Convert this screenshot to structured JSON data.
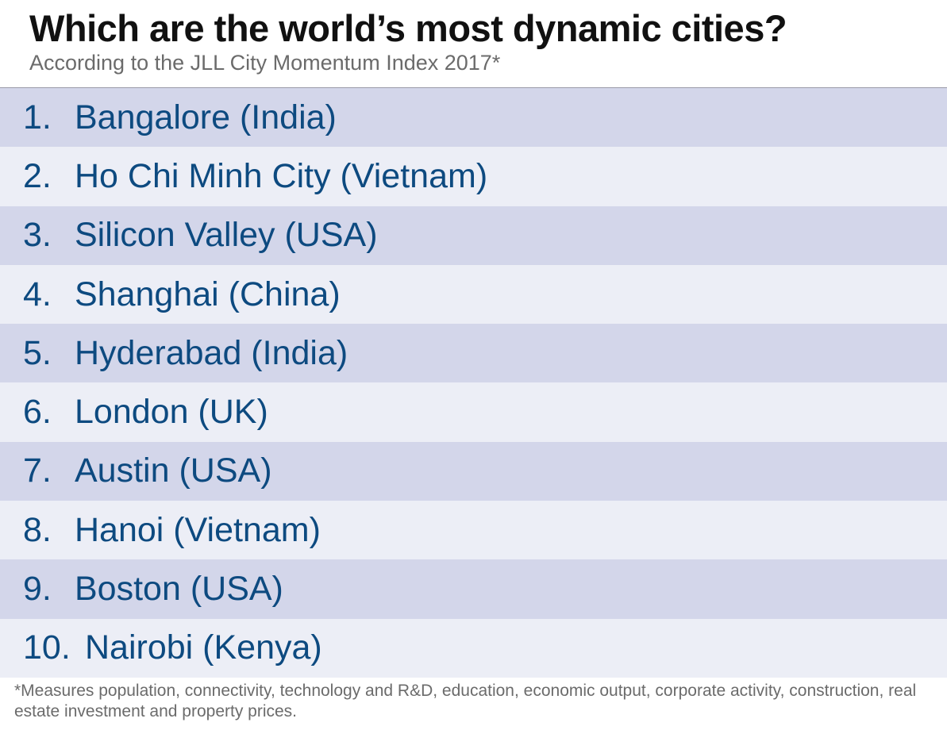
{
  "header": {
    "title": "Which are the world’s most dynamic cities?",
    "subtitle": "According to the JLL City Momentum Index 2017*"
  },
  "rankings": [
    {
      "rank": "1.",
      "city": "Bangalore (India)"
    },
    {
      "rank": "2.",
      "city": "Ho Chi Minh City (Vietnam)"
    },
    {
      "rank": "3.",
      "city": "Silicon Valley (USA)"
    },
    {
      "rank": "4.",
      "city": "Shanghai (China)"
    },
    {
      "rank": "5.",
      "city": "Hyderabad (India)"
    },
    {
      "rank": "6.",
      "city": "London (UK)"
    },
    {
      "rank": "7.",
      "city": "Austin (USA)"
    },
    {
      "rank": "8.",
      "city": "Hanoi (Vietnam)"
    },
    {
      "rank": "9.",
      "city": "Boston (USA)"
    },
    {
      "rank": "10.",
      "city": "Nairobi (Kenya)"
    }
  ],
  "footnote": "*Measures population, connectivity, technology and R&D, education, economic output, corporate activity, construction, real estate investment and property prices.",
  "colors": {
    "row_dark": "#d3d6ea",
    "row_light": "#eceef6",
    "text_blue": "#0d4a80",
    "title_text": "#111111",
    "muted_text": "#6b6b6b"
  }
}
